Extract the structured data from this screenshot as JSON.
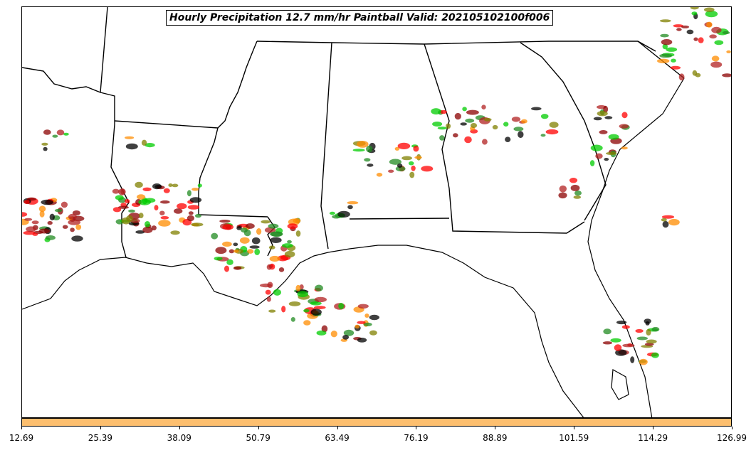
{
  "title": "Hourly Precipitation 12.7 mm/hr Paintball Valid: 202105102100f006",
  "colorbar": {
    "color": "#fdbf6f",
    "ticks": [
      "12.69",
      "25.39",
      "38.09",
      "50.79",
      "63.49",
      "76.19",
      "88.89",
      "101.59",
      "114.29",
      "126.99"
    ]
  },
  "member_colors": [
    "#ff0000",
    "#ff8c00",
    "#808000",
    "#8b0000",
    "#00cc00",
    "#000000",
    "#b22222",
    "#228b22"
  ]
}
